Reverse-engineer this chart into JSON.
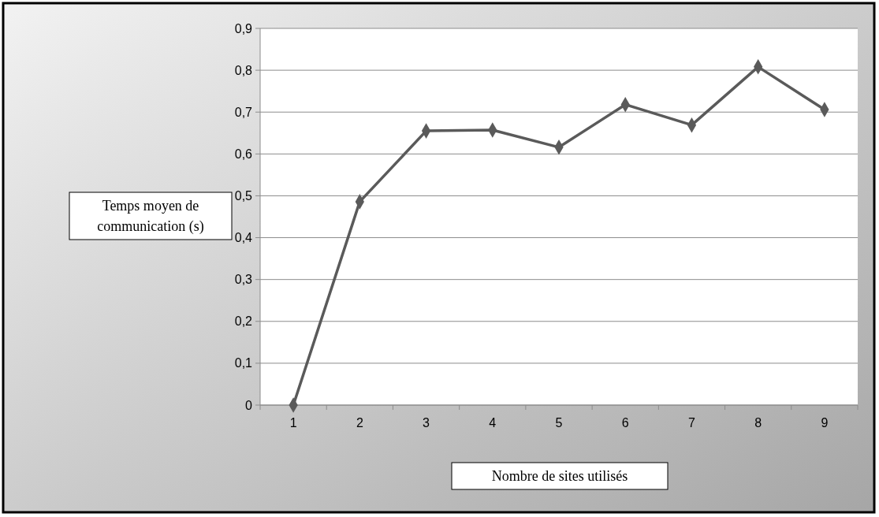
{
  "chart_data": {
    "type": "line",
    "xlabel": "Nombre de sites utilisés",
    "ylabel": "Temps moyen de communication (s)",
    "categories": [
      "1",
      "2",
      "3",
      "4",
      "5",
      "6",
      "7",
      "8",
      "9"
    ],
    "series": [
      {
        "color": "#5a5a5a",
        "values": [
          0,
          0.486,
          0.655,
          0.657,
          0.616,
          0.718,
          0.669,
          0.808,
          0.706
        ]
      }
    ],
    "ylim": [
      0,
      0.9
    ],
    "yticks": [
      0,
      {
        "value": 0.1,
        "label": "0,1"
      },
      {
        "value": 0.2,
        "label": "0,2"
      },
      {
        "value": 0.3,
        "label": "0,3"
      },
      {
        "value": 0.4,
        "label": "0,4"
      },
      {
        "value": 0.5,
        "label": "0,5"
      },
      {
        "value": 0.6,
        "label": "0,6"
      },
      {
        "value": 0.7,
        "label": "0,7"
      },
      {
        "value": 0.8,
        "label": "0,8"
      },
      {
        "value": 0.9,
        "label": "0,9"
      }
    ],
    "grid": "y",
    "marker": "diamond",
    "line_style": "solid"
  }
}
